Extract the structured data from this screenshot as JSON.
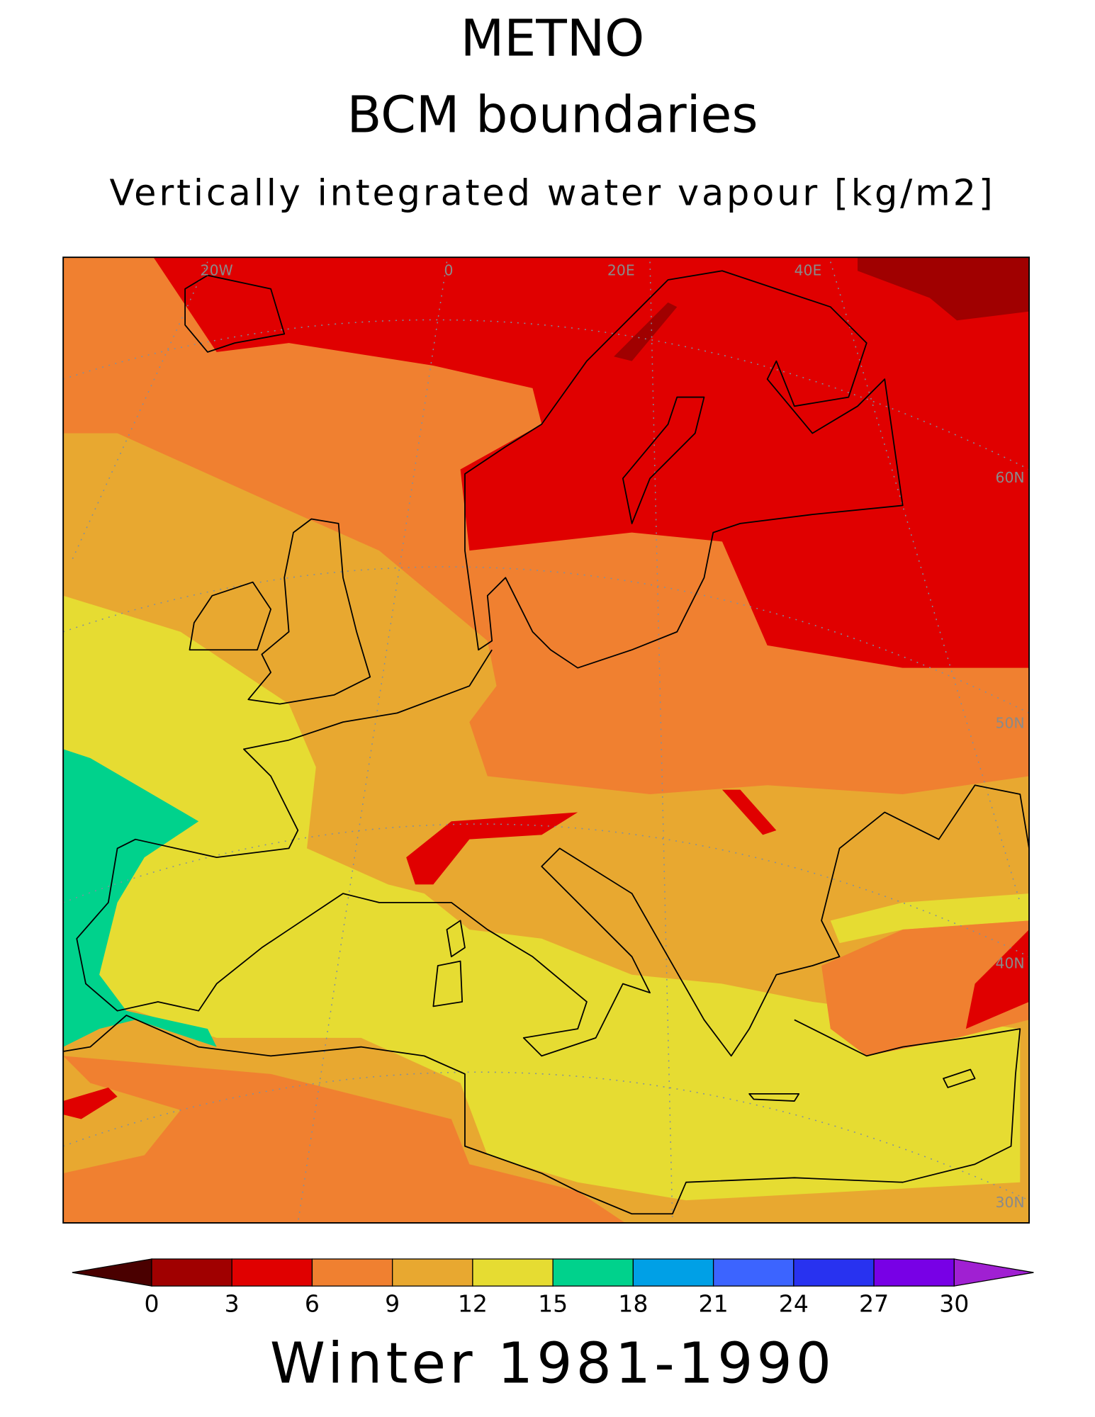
{
  "title": "METNO",
  "subtitle": "BCM boundaries",
  "variable": "Vertically integrated water vapour [kg/m2]",
  "footer": "Winter 1981-1990",
  "map": {
    "lon_labels": [
      "20W",
      "0",
      "20E",
      "40E"
    ],
    "lat_labels": [
      "60N",
      "50N",
      "40N",
      "30N"
    ]
  },
  "colorbar": {
    "ticks": [
      0,
      3,
      6,
      9,
      12,
      15,
      18,
      21,
      24,
      27,
      30
    ],
    "colors": [
      "#4a0000",
      "#a00000",
      "#e00000",
      "#f08030",
      "#e8a830",
      "#e6dc32",
      "#00d28c",
      "#00a0e6",
      "#3c64ff",
      "#2832f0",
      "#7800e6",
      "#a020d2"
    ]
  }
}
